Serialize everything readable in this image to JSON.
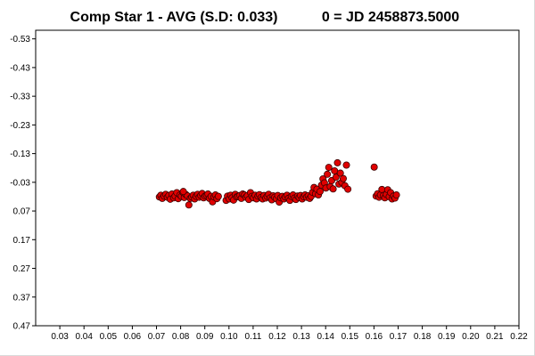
{
  "colors": {
    "background": "#ffffff",
    "plot_border": "#000000",
    "marker_fill": "#e00000",
    "marker_edge": "#3a0000"
  },
  "chart_data": {
    "type": "scatter",
    "title": "Comp Star 1 - AVG (S.D: 0.033)",
    "subtitle": "0 = JD 2458873.5000",
    "xlabel": "",
    "ylabel": "",
    "xlim": [
      0.02,
      0.22
    ],
    "ylim": [
      -0.56,
      0.47
    ],
    "y_inverted": true,
    "grid": false,
    "x_ticks": [
      "0.03",
      "0.04",
      "0.05",
      "0.06",
      "0.07",
      "0.08",
      "0.09",
      "0.10",
      "0.11",
      "0.12",
      "0.13",
      "0.14",
      "0.15",
      "0.16",
      "0.17",
      "0.18",
      "0.19",
      "0.20",
      "0.21",
      "0.22"
    ],
    "y_ticks": [
      "-0.53",
      "-0.43",
      "-0.33",
      "-0.23",
      "-0.13",
      "-0.03",
      "0.07",
      "0.17",
      "0.27",
      "0.37",
      "0.47"
    ],
    "series": [
      {
        "marker": "circle",
        "points": [
          [
            0.0712,
            0.021
          ],
          [
            0.0718,
            0.015
          ],
          [
            0.0724,
            0.026
          ],
          [
            0.0731,
            0.018
          ],
          [
            0.0738,
            0.012
          ],
          [
            0.0745,
            0.022
          ],
          [
            0.0751,
            0.016
          ],
          [
            0.0757,
            0.029
          ],
          [
            0.0764,
            0.011
          ],
          [
            0.0771,
            0.024
          ],
          [
            0.0777,
            0.018
          ],
          [
            0.0784,
            0.006
          ],
          [
            0.079,
            0.027
          ],
          [
            0.0797,
            0.014
          ],
          [
            0.0803,
            0.019
          ],
          [
            0.0809,
            0.005
          ],
          [
            0.0815,
            0.023
          ],
          [
            0.0821,
            0.012
          ],
          [
            0.0828,
            0.017
          ],
          [
            0.0834,
            0.049
          ],
          [
            0.084,
            0.026
          ],
          [
            0.0846,
            0.021
          ],
          [
            0.0852,
            0.015
          ],
          [
            0.0858,
            0.028
          ],
          [
            0.0864,
            0.019
          ],
          [
            0.087,
            0.012
          ],
          [
            0.0877,
            0.022
          ],
          [
            0.0883,
            0.016
          ],
          [
            0.0889,
            0.009
          ],
          [
            0.0895,
            0.024
          ],
          [
            0.0901,
            0.018
          ],
          [
            0.0907,
            0.015
          ],
          [
            0.0913,
            0.011
          ],
          [
            0.0919,
            0.026
          ],
          [
            0.0926,
            0.019
          ],
          [
            0.0932,
            0.038
          ],
          [
            0.0938,
            0.021
          ],
          [
            0.0944,
            0.014
          ],
          [
            0.095,
            0.027
          ],
          [
            0.0956,
            0.019
          ],
          [
            0.0811,
            0.002
          ],
          [
            0.0988,
            0.033
          ],
          [
            0.0994,
            0.018
          ],
          [
            0.1001,
            0.028
          ],
          [
            0.1007,
            0.015
          ],
          [
            0.1013,
            0.024
          ],
          [
            0.1019,
            0.032
          ],
          [
            0.1026,
            0.012
          ],
          [
            0.1032,
            0.021
          ],
          [
            0.1038,
            0.019
          ],
          [
            0.1045,
            0.016
          ],
          [
            0.1051,
            0.026
          ],
          [
            0.1057,
            0.011
          ],
          [
            0.1064,
            0.014
          ],
          [
            0.107,
            0.022
          ],
          [
            0.1076,
            0.017
          ],
          [
            0.1082,
            0.03
          ],
          [
            0.1089,
            0.006
          ],
          [
            0.1095,
            0.019
          ],
          [
            0.1101,
            0.024
          ],
          [
            0.1108,
            0.015
          ],
          [
            0.1114,
            0.028
          ],
          [
            0.112,
            0.018
          ],
          [
            0.1126,
            0.013
          ],
          [
            0.1133,
            0.023
          ],
          [
            0.1139,
            0.028
          ],
          [
            0.1145,
            0.016
          ],
          [
            0.1152,
            0.025
          ],
          [
            0.1158,
            0.019
          ],
          [
            0.1164,
            0.012
          ],
          [
            0.1171,
            0.024
          ],
          [
            0.1177,
            0.031
          ],
          [
            0.1183,
            0.017
          ],
          [
            0.1189,
            0.022
          ],
          [
            0.1196,
            0.027
          ],
          [
            0.1202,
            0.016
          ],
          [
            0.1208,
            0.039
          ],
          [
            0.1214,
            0.024
          ],
          [
            0.1221,
            0.019
          ],
          [
            0.1227,
            0.028
          ],
          [
            0.1233,
            0.021
          ],
          [
            0.124,
            0.015
          ],
          [
            0.1246,
            0.026
          ],
          [
            0.1252,
            0.033
          ],
          [
            0.1258,
            0.019
          ],
          [
            0.1265,
            0.014
          ],
          [
            0.1271,
            0.025
          ],
          [
            0.1277,
            0.03
          ],
          [
            0.1284,
            0.018
          ],
          [
            0.129,
            0.023
          ],
          [
            0.1296,
            0.016
          ],
          [
            0.1303,
            0.028
          ],
          [
            0.1309,
            0.02
          ],
          [
            0.1315,
            0.014
          ],
          [
            0.1321,
            0.022
          ],
          [
            0.1328,
            0.017
          ],
          [
            0.1334,
            0.026
          ],
          [
            0.134,
            0.019
          ],
          [
            0.1346,
            0.005
          ],
          [
            0.1352,
            -0.012
          ],
          [
            0.1358,
            0.01
          ],
          [
            0.1364,
            -0.006
          ],
          [
            0.137,
            0.014
          ],
          [
            0.1377,
            0.002
          ],
          [
            0.1383,
            -0.02
          ],
          [
            0.1389,
            -0.042
          ],
          [
            0.1395,
            -0.028
          ],
          [
            0.1401,
            -0.01
          ],
          [
            0.1407,
            -0.058
          ],
          [
            0.1413,
            -0.082
          ],
          [
            0.1419,
            -0.015
          ],
          [
            0.1425,
            -0.036
          ],
          [
            0.1431,
            -0.007
          ],
          [
            0.1437,
            -0.07
          ],
          [
            0.1443,
            -0.048
          ],
          [
            0.1449,
            -0.098
          ],
          [
            0.1455,
            -0.024
          ],
          [
            0.1461,
            -0.062
          ],
          [
            0.1467,
            -0.03
          ],
          [
            0.1473,
            -0.043
          ],
          [
            0.148,
            -0.018
          ],
          [
            0.1486,
            -0.09
          ],
          [
            0.1492,
            -0.006
          ],
          [
            0.1601,
            -0.083
          ],
          [
            0.1609,
            0.018
          ],
          [
            0.1615,
            0.01
          ],
          [
            0.1621,
            0.022
          ],
          [
            0.1627,
            0.014
          ],
          [
            0.1633,
            -0.005
          ],
          [
            0.1639,
            0.016
          ],
          [
            0.1645,
            0.024
          ],
          [
            0.1651,
            0.012
          ],
          [
            0.1657,
            -0.004
          ],
          [
            0.1663,
            0.02
          ],
          [
            0.1669,
            0.006
          ],
          [
            0.1675,
            0.028
          ],
          [
            0.1681,
            0.018
          ],
          [
            0.1687,
            0.025
          ],
          [
            0.1693,
            0.014
          ]
        ]
      }
    ]
  }
}
